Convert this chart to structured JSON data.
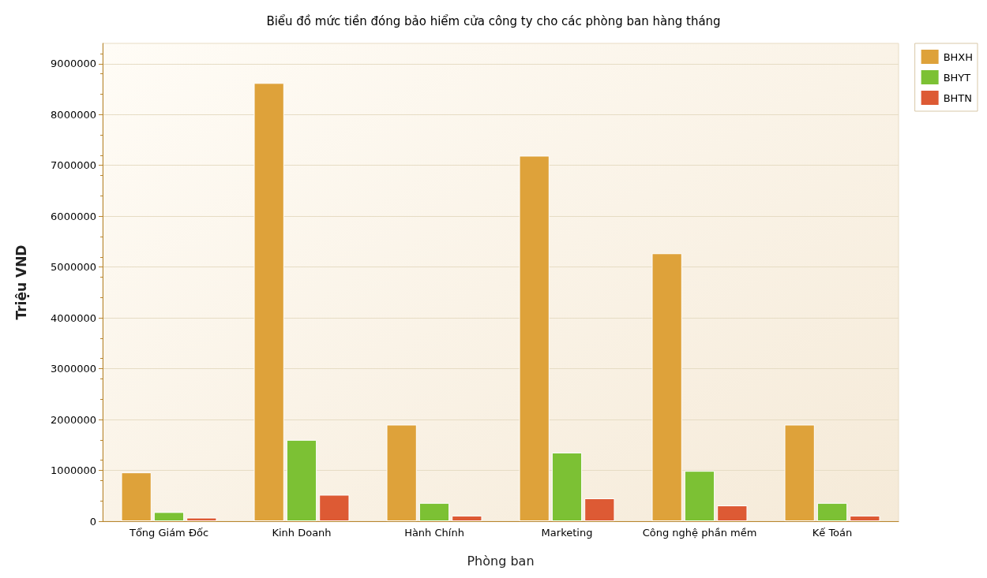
{
  "chart_data": {
    "type": "bar",
    "title": "Biểu đồ mức tiền đóng bảo hiểm cửa công ty cho các phòng ban hàng tháng",
    "xlabel": "Phòng ban",
    "ylabel": "Triệu VND",
    "categories": [
      "Tổng Giám Đốc",
      "Kinh Doanh",
      "Hành Chính",
      "Marketing",
      "Công nghệ phần mềm",
      "Kế Toán"
    ],
    "series": [
      {
        "name": "BHXH",
        "color": "#dea23a",
        "values": [
          960000,
          8620000,
          1900000,
          7190000,
          5270000,
          1900000
        ]
      },
      {
        "name": "BHYT",
        "color": "#7cc134",
        "values": [
          180000,
          1600000,
          360000,
          1350000,
          990000,
          360000
        ]
      },
      {
        "name": "BHTN",
        "color": "#dd5a34",
        "values": [
          70000,
          520000,
          110000,
          450000,
          310000,
          110000
        ]
      }
    ],
    "ylim": [
      0,
      9400000
    ],
    "yticks": [
      0,
      1000000,
      2000000,
      3000000,
      4000000,
      5000000,
      6000000,
      7000000,
      8000000,
      9000000
    ],
    "grid": "y",
    "legend": "top right"
  }
}
